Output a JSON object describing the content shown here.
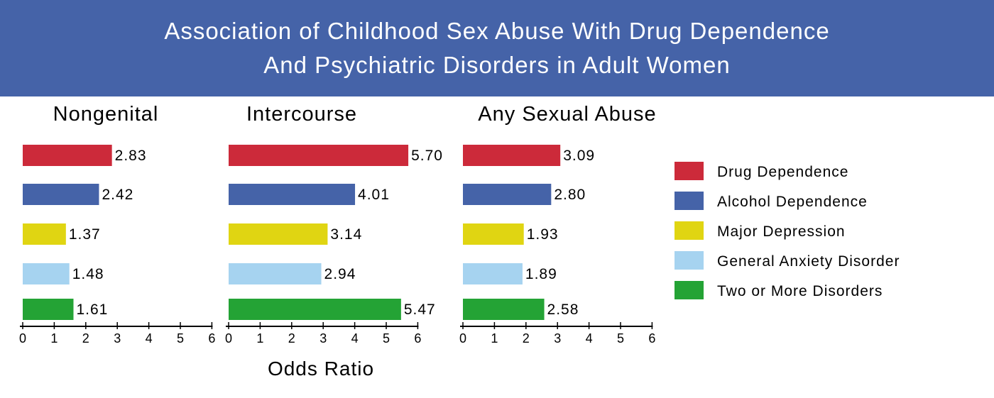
{
  "chart_data": {
    "type": "bar",
    "orientation": "horizontal",
    "title_lines": [
      "Association of Childhood Sex Abuse With Drug Dependence",
      "And Psychiatric Disorders in Adult Women"
    ],
    "xlabel": "Odds Ratio",
    "xlim": [
      0,
      6
    ],
    "ticks": [
      "0",
      "1",
      "2",
      "3",
      "4",
      "5",
      "6"
    ],
    "categories": [
      "Drug Dependence",
      "Alcohol Dependence",
      "Major Depression",
      "General   Anxiety Disorder",
      "Two or More Disorders"
    ],
    "colors": [
      "#cc2a3a",
      "#4563a8",
      "#e0d512",
      "#a6d3f0",
      "#24a335"
    ],
    "legend_position": "right",
    "panels": [
      {
        "title": "Nongenital",
        "values": [
          2.83,
          2.42,
          1.37,
          1.48,
          1.61
        ],
        "labels": [
          "2.83",
          "2.42",
          "1.37",
          "1.48",
          "1.61"
        ]
      },
      {
        "title": "Intercourse",
        "values": [
          5.7,
          4.01,
          3.14,
          2.94,
          5.47
        ],
        "labels": [
          "5.70",
          "4.01",
          "3.14",
          "2.94",
          "5.47"
        ]
      },
      {
        "title": "Any Sexual Abuse",
        "values": [
          3.09,
          2.8,
          1.93,
          1.89,
          2.58
        ],
        "labels": [
          "3.09",
          "2.80",
          "1.93",
          "1.89",
          "2.58"
        ]
      }
    ]
  }
}
